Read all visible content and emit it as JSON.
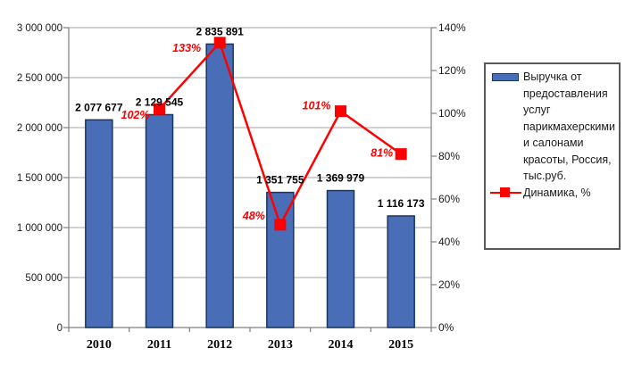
{
  "background": "#ffffff",
  "chart_data": {
    "type": "combo-bar-line",
    "categories": [
      "2010",
      "2011",
      "2012",
      "2013",
      "2014",
      "2015"
    ],
    "series": [
      {
        "name": "Выручка от предоставления услуг парикмахерскими и салонами красоты, Россия, тыс.руб.",
        "type": "bar",
        "axis": "left",
        "values": [
          2077677,
          2129545,
          2835891,
          1351755,
          1369979,
          1116173
        ],
        "labels": [
          "2 077 677",
          "2 129 545",
          "2 835 891",
          "1 351 755",
          "1 369 979",
          "1 116 173"
        ],
        "color": "#4a6db7",
        "border_color": "#17375e"
      },
      {
        "name": "Динамика, %",
        "type": "line",
        "axis": "right",
        "values": [
          null,
          102,
          133,
          48,
          101,
          81
        ],
        "labels": [
          null,
          "102%",
          "133%",
          "48%",
          "101%",
          "81%"
        ],
        "label_offsets": [
          null,
          [
            -11,
            11
          ],
          [
            -21,
            10
          ],
          [
            -17,
            -6
          ],
          [
            -11,
            -2
          ],
          [
            -9,
            3
          ]
        ],
        "color": "#ff0000",
        "marker": "square"
      }
    ],
    "left_axis": {
      "min": 0,
      "max": 3000000,
      "step": 500000,
      "tick_labels": [
        "0",
        "500 000",
        "1 000 000",
        "1 500 000",
        "2 000 000",
        "2 500 000",
        "3 000 000"
      ]
    },
    "right_axis": {
      "min": 0,
      "max": 140,
      "step": 20,
      "tick_labels": [
        "0%",
        "20%",
        "40%",
        "60%",
        "80%",
        "100%",
        "120%",
        "140%"
      ]
    },
    "title": "",
    "grid": true,
    "legend_position": "right",
    "colors": {
      "grid": "#a6a6a6",
      "axis": "#808080",
      "value_label": "#000000",
      "percent_label": "#ff0000",
      "tick_label": "#1a1a1a",
      "legend_border": "#595959"
    }
  }
}
